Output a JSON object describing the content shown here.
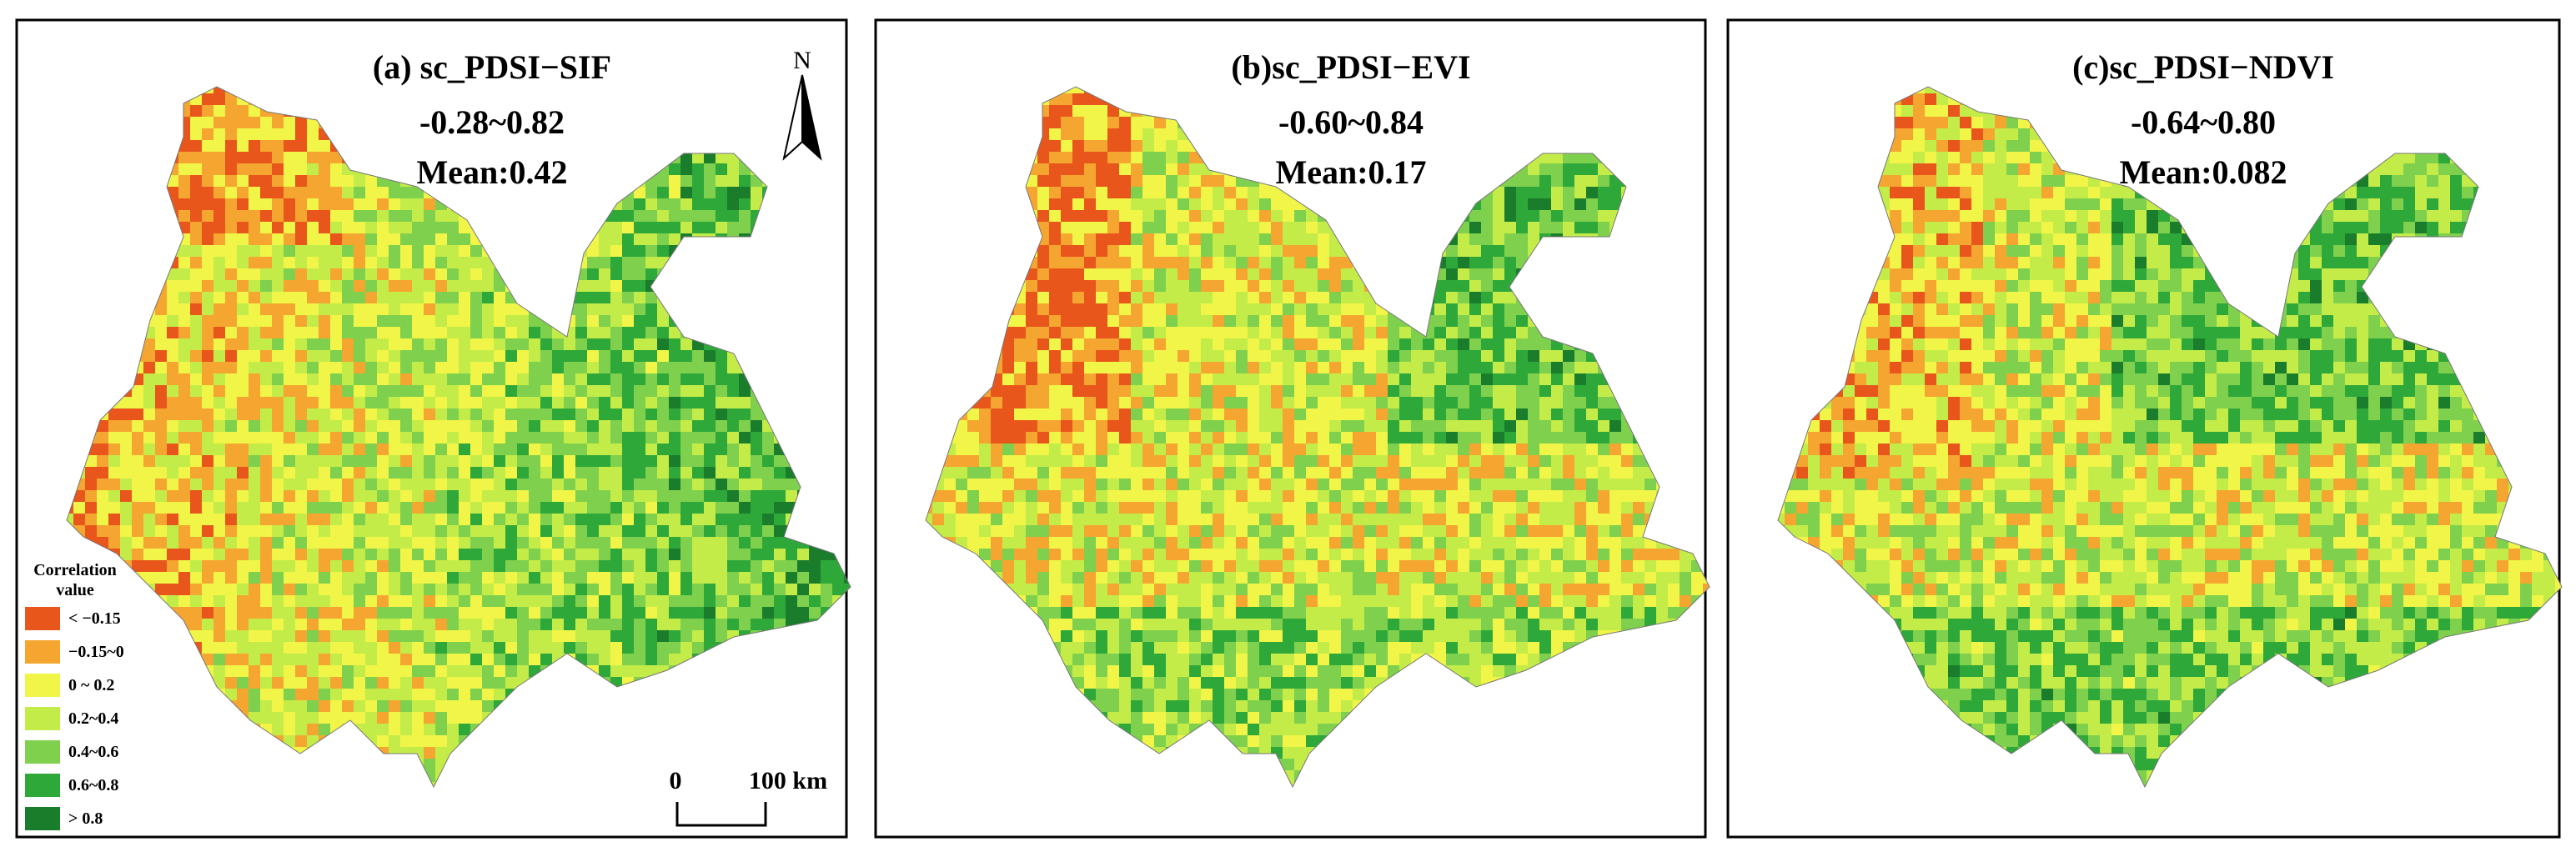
{
  "panels": [
    {
      "title": "(a) sc_PDSI−SIF",
      "range": "-0.28~0.82",
      "mean": "Mean:0.42"
    },
    {
      "title": "(b)sc_PDSI−EVI",
      "range": "-0.60~0.84",
      "mean": "Mean:0.17"
    },
    {
      "title": "(c)sc_PDSI−NDVI",
      "range": "-0.64~0.80",
      "mean": "Mean:0.082"
    }
  ],
  "legend": {
    "title": [
      "Correlation",
      "value"
    ],
    "items": [
      {
        "label": "< −0.15",
        "color": "#e8561c"
      },
      {
        "label": "−0.15~0",
        "color": "#f5a630"
      },
      {
        "label": "0 ~ 0.2",
        "color": "#f0f548"
      },
      {
        "label": "0.2~0.4",
        "color": "#c4ec48"
      },
      {
        "label": "0.4~0.6",
        "color": "#7fd04c"
      },
      {
        "label": "0.6~0.8",
        "color": "#2fa83a"
      },
      {
        "label": "> 0.8",
        "color": "#1a7d2c"
      }
    ]
  },
  "scale_bar": {
    "start": "0",
    "end": "100 km"
  },
  "north": "N"
}
